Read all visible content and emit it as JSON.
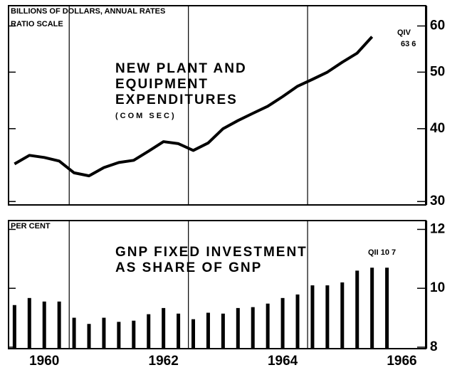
{
  "chart_data": [
    {
      "type": "line",
      "title": [
        "NEW PLANT AND",
        "EQUIPMENT",
        "EXPENDITURES"
      ],
      "subtitle": "(COM SEC)",
      "ylabel": [
        "BILLIONS OF DOLLARS, ANNUAL RATES",
        "RATIO SCALE"
      ],
      "annotation": [
        "QIV",
        "63 6"
      ],
      "log_scale": true,
      "color": "#000000",
      "xlim": [
        1959.4,
        1966.4
      ],
      "ylim": [
        29.6,
        65
      ],
      "yticks": [
        30,
        40,
        50,
        60
      ],
      "x": [
        1959.5,
        1959.75,
        1960,
        1960.25,
        1960.5,
        1960.75,
        1961,
        1961.25,
        1961.5,
        1961.75,
        1962,
        1962.25,
        1962.5,
        1962.75,
        1963,
        1963.25,
        1963.5,
        1963.75,
        1964,
        1964.25,
        1964.5,
        1964.75,
        1965,
        1965.25,
        1965.5
      ],
      "values": [
        34.8,
        36.0,
        35.7,
        35.2,
        33.6,
        33.2,
        34.3,
        35.0,
        35.3,
        36.6,
        38.0,
        37.7,
        36.7,
        37.8,
        40.0,
        41.3,
        42.5,
        43.7,
        45.4,
        47.3,
        48.6,
        50.0,
        52.0,
        53.9,
        57.5
      ]
    },
    {
      "type": "bar",
      "title": [
        "GNP FIXED INVESTMENT",
        "AS SHARE OF GNP"
      ],
      "ylabel": [
        "PER CENT"
      ],
      "annotation": [
        "QII 10 7"
      ],
      "color": "#000000",
      "xlim": [
        1959.4,
        1966.4
      ],
      "xticks": [
        1960,
        1962,
        1964,
        1966
      ],
      "ylim": [
        7.95,
        12.3
      ],
      "yticks": [
        8,
        10,
        12
      ],
      "x": [
        1959.5,
        1959.75,
        1960,
        1960.25,
        1960.5,
        1960.75,
        1961,
        1961.25,
        1961.5,
        1961.75,
        1962,
        1962.25,
        1962.5,
        1962.75,
        1963,
        1963.25,
        1963.5,
        1963.75,
        1964,
        1964.25,
        1964.5,
        1964.75,
        1965,
        1965.25,
        1965.5,
        1965.75
      ],
      "values": [
        9.43,
        9.67,
        9.55,
        9.55,
        9.0,
        8.79,
        9.0,
        8.86,
        8.9,
        9.12,
        9.33,
        9.14,
        8.95,
        9.17,
        9.14,
        9.33,
        9.36,
        9.48,
        9.67,
        9.79,
        10.1,
        10.1,
        10.2,
        10.6,
        10.7,
        10.7
      ]
    }
  ]
}
